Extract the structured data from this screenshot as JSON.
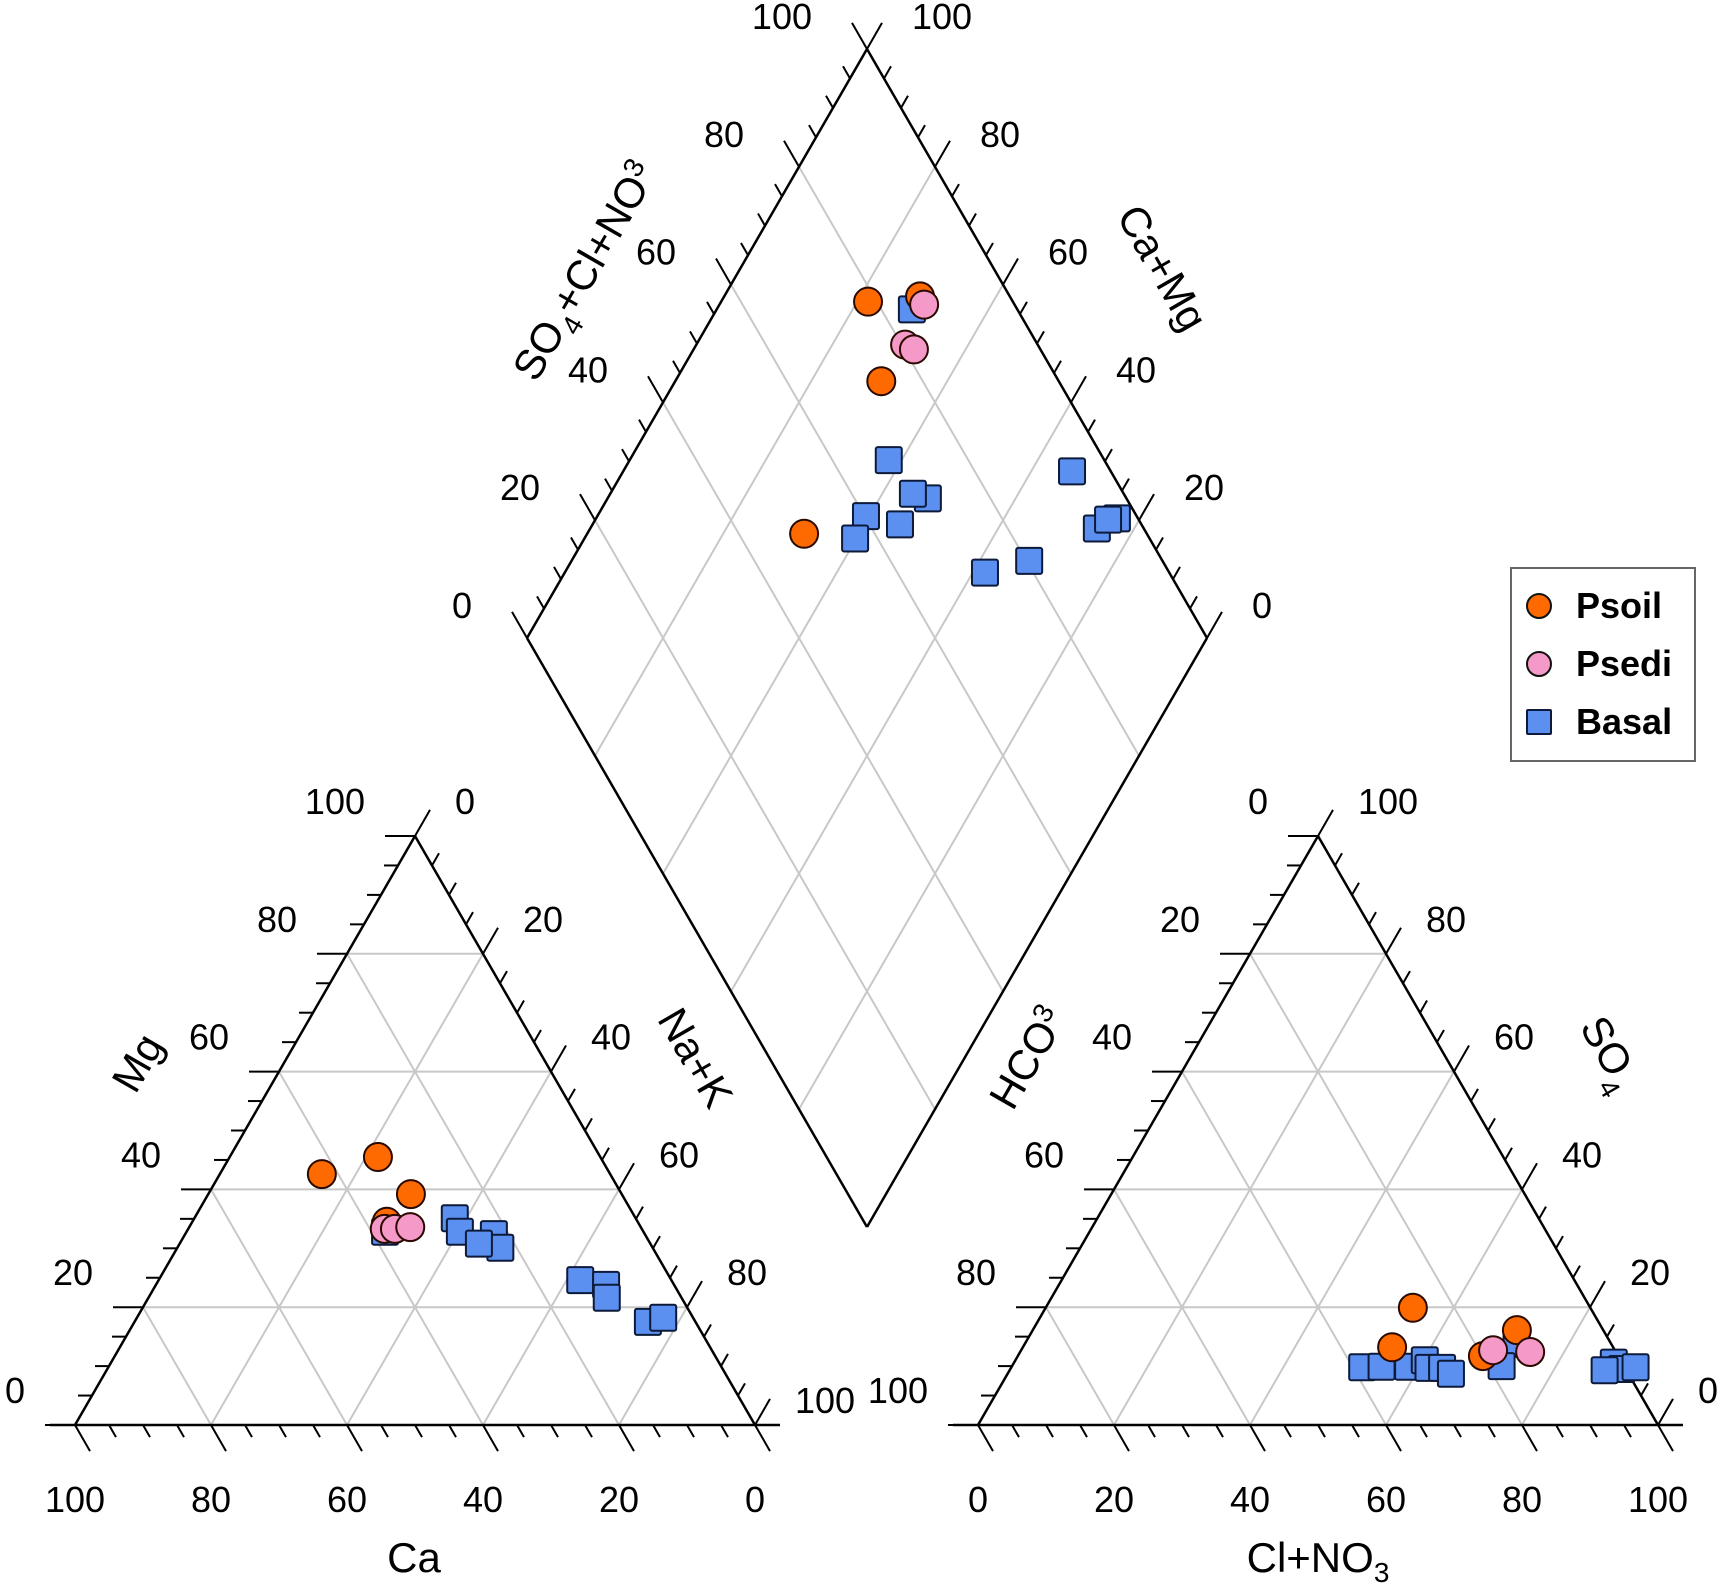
{
  "chart_data": {
    "type": "scatter",
    "subtype": "piper-diagram",
    "legend": {
      "placement": "right",
      "entries": [
        {
          "name": "Psoil",
          "marker": "circle",
          "color": "#ff6a00"
        },
        {
          "name": "Psedi",
          "marker": "circle",
          "color": "#f59ac8"
        },
        {
          "name": "Basal",
          "marker": "square",
          "color": "#5b8ff0"
        }
      ]
    },
    "cation_triangle": {
      "axes": {
        "bottom": "Ca",
        "left": "Mg",
        "right": "Na+K"
      },
      "bottom_ticks": [
        "100",
        "80",
        "60",
        "40",
        "20",
        "0"
      ],
      "left_ticks": [
        "0",
        "20",
        "40",
        "60",
        "80",
        "100"
      ],
      "right_ticks": [
        "0",
        "20",
        "40",
        "60",
        "80",
        "100"
      ],
      "range": [
        0,
        100
      ]
    },
    "anion_triangle": {
      "axes": {
        "bottom": "Cl+NO3",
        "left": "HCO3",
        "right": "SO4"
      },
      "bottom_ticks": [
        "0",
        "20",
        "40",
        "60",
        "80",
        "100"
      ],
      "left_ticks": [
        "100",
        "80",
        "60",
        "40",
        "20",
        "0"
      ],
      "right_ticks": [
        "0",
        "20",
        "40",
        "60",
        "80",
        "100"
      ],
      "range": [
        0,
        100
      ]
    },
    "diamond": {
      "axes": {
        "upper_left": "SO4+Cl+NO3",
        "upper_right": "Ca+Mg"
      },
      "upper_left_ticks": [
        "0",
        "20",
        "40",
        "60",
        "80",
        "100"
      ],
      "upper_right_ticks": [
        "0",
        "20",
        "40",
        "60",
        "80",
        "100"
      ],
      "range": [
        0,
        100
      ]
    },
    "series": [
      {
        "name": "Psoil",
        "cation": [
          {
            "Mg": 42.6,
            "NaK": 15.0
          },
          {
            "Mg": 45.5,
            "NaK": 21.8
          },
          {
            "Mg": 39.2,
            "NaK": 29.8
          },
          {
            "Mg": 34.5,
            "NaK": 28.6
          }
        ],
        "anion": [
          {
            "SO4": 19.9,
            "Cl": 54.0
          },
          {
            "SO4": 13.2,
            "Cl": 54.3
          },
          {
            "SO4": 16.1,
            "Cl": 71.2
          },
          {
            "SO4": 11.7,
            "Cl": 68.4
          }
        ],
        "diamond": [
          {
            "A": 49.6,
            "C": 68.1
          },
          {
            "A": 78.7,
            "C": 78.4
          },
          {
            "A": 86.8,
            "C": 71.2
          },
          {
            "A": 73.9,
            "C": 69.7
          }
        ]
      },
      {
        "name": "Psedi",
        "cation": [
          {
            "Mg": 33.3,
            "NaK": 28.9
          },
          {
            "Mg": 33.3,
            "NaK": 30.4
          },
          {
            "Mg": 33.6,
            "NaK": 32.5
          }
        ],
        "anion": [
          {
            "SO4": 12.7,
            "Cl": 69.4
          },
          {
            "SO4": 12.4,
            "Cl": 75.0
          }
        ],
        "diamond": [
          {
            "A": 86.7,
            "C": 69.9
          },
          {
            "A": 80.5,
            "C": 69.3
          },
          {
            "A": 81.4,
            "C": 67.6
          }
        ]
      },
      {
        "name": "Basal",
        "cation": [
          {
            "Mg": 32.8,
            "NaK": 29.2
          },
          {
            "Mg": 35.1,
            "NaK": 38.3
          },
          {
            "Mg": 32.8,
            "NaK": 40.2
          },
          {
            "Mg": 32.4,
            "NaK": 45.4
          },
          {
            "Mg": 30.1,
            "NaK": 47.5
          },
          {
            "Mg": 30.8,
            "NaK": 44.0
          },
          {
            "Mg": 24.6,
            "NaK": 62.0
          },
          {
            "Mg": 23.8,
            "NaK": 66.2
          },
          {
            "Mg": 21.6,
            "NaK": 67.4
          },
          {
            "Mg": 17.5,
            "NaK": 75.5
          },
          {
            "Mg": 18.2,
            "NaK": 77.4
          }
        ],
        "anion": [
          {
            "SO4": 9.8,
            "Cl": 51.6
          },
          {
            "SO4": 9.9,
            "Cl": 54.4
          },
          {
            "SO4": 9.9,
            "Cl": 58.3
          },
          {
            "SO4": 11.0,
            "Cl": 60.2
          },
          {
            "SO4": 9.7,
            "Cl": 61.4
          },
          {
            "SO4": 9.7,
            "Cl": 63.4
          },
          {
            "SO4": 8.7,
            "Cl": 65.2
          },
          {
            "SO4": 13.8,
            "Cl": 72.3
          },
          {
            "SO4": 10.0,
            "Cl": 72.0
          },
          {
            "SO4": 10.6,
            "Cl": 88.2
          },
          {
            "SO4": 9.5,
            "Cl": 89.9
          },
          {
            "SO4": 9.3,
            "Cl": 87.5
          },
          {
            "SO4": 9.8,
            "Cl": 91.8
          }
        ],
        "diamond": [
          {
            "A": 84.5,
            "C": 71.3
          },
          {
            "A": 68.3,
            "C": 61.9
          },
          {
            "A": 60.2,
            "C": 60.5
          },
          {
            "A": 56.7,
            "C": 60.2
          },
          {
            "A": 64.5,
            "C": 54.8
          },
          {
            "A": 70.8,
            "C": 52.9
          },
          {
            "A": 69.0,
            "C": 55.5
          },
          {
            "A": 94.3,
            "C": 34.0
          },
          {
            "A": 93.1,
            "C": 25.5
          },
          {
            "A": 96.9,
            "C": 23.4
          },
          {
            "A": 95.5,
            "C": 24.6
          },
          {
            "A": 72.9,
            "C": 38.2
          },
          {
            "A": 80.4,
            "C": 32.7
          }
        ]
      }
    ],
    "grid": true
  }
}
